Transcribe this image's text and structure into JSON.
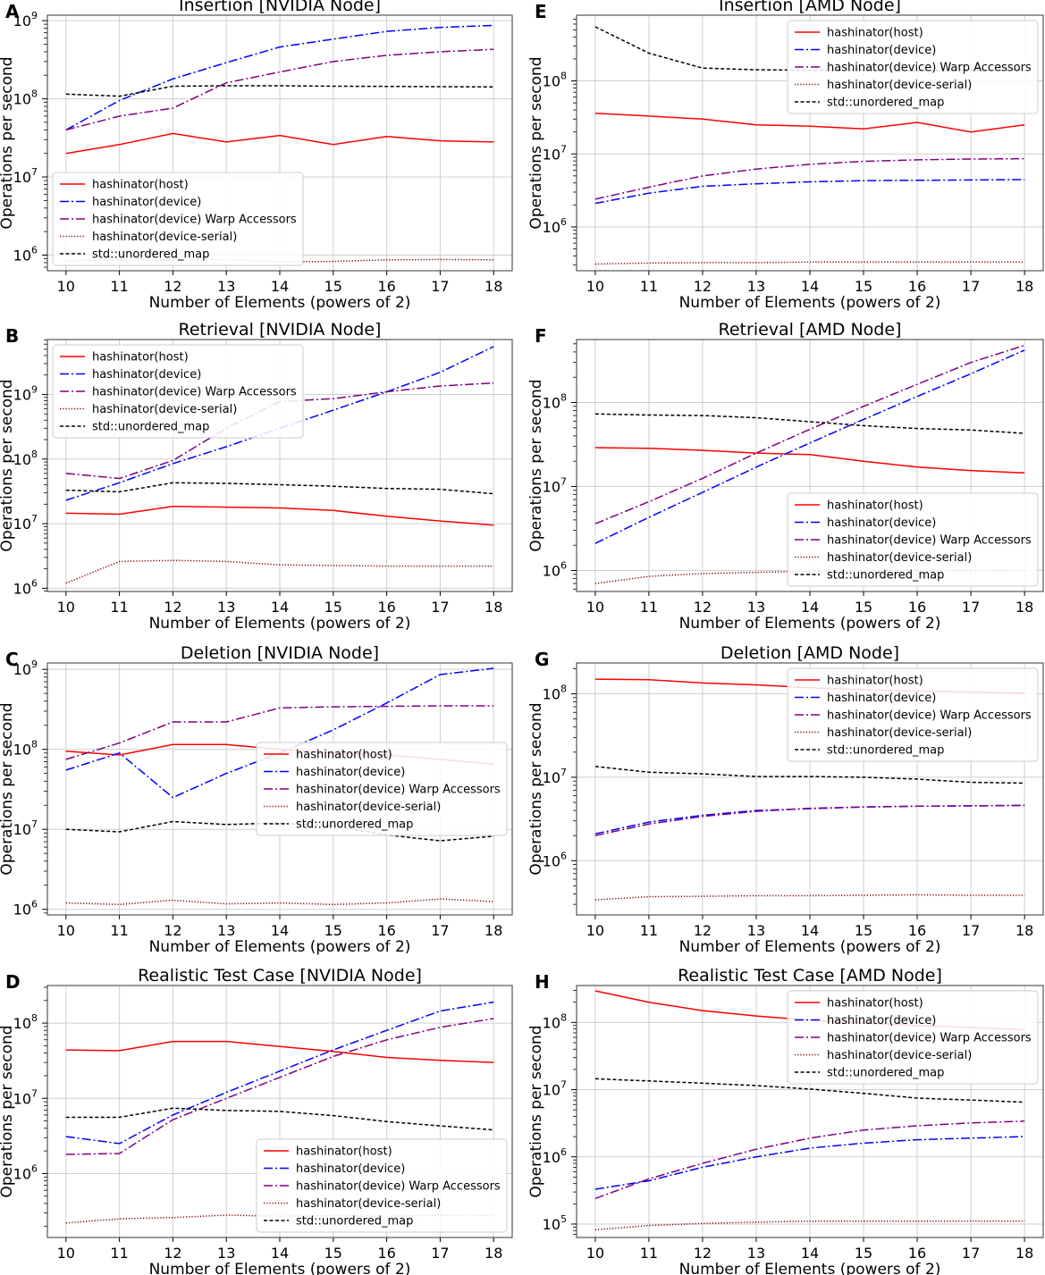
{
  "legend_labels": [
    "hashinator(host)",
    "hashinator(device)",
    "hashinator(device) Warp Accessors",
    "hashinator(device-serial)",
    "std::unordered_map"
  ],
  "series_styles": [
    {
      "color": "#ff0000",
      "dash": ""
    },
    {
      "color": "#0000ff",
      "dash": "10 3 2 3"
    },
    {
      "color": "#800080",
      "dash": "10 3 2 3"
    },
    {
      "color": "#800000",
      "dash": "1.2 2"
    },
    {
      "color": "#000000",
      "dash": "4 2.5"
    }
  ],
  "chart_data": [
    {
      "id": "insertion-nvidia",
      "panel_label": "A",
      "title": "Insertion [NVIDIA Node]",
      "type": "line",
      "xlabel": "Number of Elements (powers of 2)",
      "ylabel": "Operations per second",
      "x": [
        10,
        11,
        12,
        13,
        14,
        15,
        16,
        17,
        18
      ],
      "yscale": "log",
      "ylim_exp": [
        5.8,
        9.07
      ],
      "yticks_exp": [
        6,
        7,
        8,
        9
      ],
      "legend_pos": "lower-left",
      "series": [
        {
          "name": "hashinator(host)",
          "values": [
            20000000.0,
            26000000.0,
            36000000.0,
            28000000.0,
            34000000.0,
            26000000.0,
            33000000.0,
            29000000.0,
            28000000.0
          ]
        },
        {
          "name": "hashinator(device)",
          "values": [
            40000000.0,
            95000000.0,
            180000000.0,
            290000000.0,
            460000000.0,
            580000000.0,
            730000000.0,
            820000000.0,
            870000000.0
          ]
        },
        {
          "name": "hashinator(device) Warp Accessors",
          "values": [
            40000000.0,
            60000000.0,
            76000000.0,
            160000000.0,
            220000000.0,
            300000000.0,
            360000000.0,
            400000000.0,
            430000000.0
          ]
        },
        {
          "name": "hashinator(device-serial)",
          "values": [
            850000.0,
            870000.0,
            860000.0,
            880000.0,
            820000.0,
            830000.0,
            870000.0,
            880000.0,
            870000.0
          ]
        },
        {
          "name": "std::unordered_map",
          "values": [
            115000000.0,
            108000000.0,
            145000000.0,
            147000000.0,
            147000000.0,
            145000000.0,
            144000000.0,
            143000000.0,
            142000000.0
          ]
        }
      ]
    },
    {
      "id": "retrieval-nvidia",
      "panel_label": "B",
      "title": "Retrieval [NVIDIA Node]",
      "type": "line",
      "xlabel": "Number of Elements (powers of 2)",
      "ylabel": "Operations per second",
      "x": [
        10,
        11,
        12,
        13,
        14,
        15,
        16,
        17,
        18
      ],
      "yscale": "log",
      "ylim_exp": [
        5.95,
        9.85
      ],
      "yticks_exp": [
        6,
        7,
        8,
        9
      ],
      "legend_pos": "upper-left",
      "series": [
        {
          "name": "hashinator(host)",
          "values": [
            14500000.0,
            14000000.0,
            18500000.0,
            18000000.0,
            17500000.0,
            16000000.0,
            13000000.0,
            11000000.0,
            9500000.0
          ]
        },
        {
          "name": "hashinator(device)",
          "values": [
            23000000.0,
            43000000.0,
            85000000.0,
            155000000.0,
            300000000.0,
            570000000.0,
            1100000000.0,
            2200000000.0,
            5500000000.0
          ]
        },
        {
          "name": "hashinator(device) Warp Accessors",
          "values": [
            60000000.0,
            50000000.0,
            95000000.0,
            300000000.0,
            780000000.0,
            860000000.0,
            1100000000.0,
            1350000000.0,
            1500000000.0
          ]
        },
        {
          "name": "hashinator(device-serial)",
          "values": [
            1200000.0,
            2600000.0,
            2700000.0,
            2600000.0,
            2300000.0,
            2250000.0,
            2200000.0,
            2200000.0,
            2200000.0
          ]
        },
        {
          "name": "std::unordered_map",
          "values": [
            33000000.0,
            31000000.0,
            43000000.0,
            42000000.0,
            40000000.0,
            38000000.0,
            35000000.0,
            34000000.0,
            29000000.0
          ]
        }
      ]
    },
    {
      "id": "deletion-nvidia",
      "panel_label": "C",
      "title": "Deletion [NVIDIA Node]",
      "type": "line",
      "xlabel": "Number of Elements (powers of 2)",
      "ylabel": "Operations per second",
      "x": [
        10,
        11,
        12,
        13,
        14,
        15,
        16,
        17,
        18
      ],
      "yscale": "log",
      "ylim_exp": [
        5.93,
        9.08
      ],
      "yticks_exp": [
        6,
        7,
        8,
        9
      ],
      "legend_pos": "center-right",
      "series": [
        {
          "name": "hashinator(host)",
          "values": [
            95000000.0,
            85000000.0,
            115000000.0,
            115000000.0,
            100000000.0,
            90000000.0,
            85000000.0,
            75000000.0,
            65000000.0
          ]
        },
        {
          "name": "hashinator(device)",
          "values": [
            55000000.0,
            90000000.0,
            25000000.0,
            50000000.0,
            90000000.0,
            175000000.0,
            380000000.0,
            860000000.0,
            1030000000.0
          ]
        },
        {
          "name": "hashinator(device) Warp Accessors",
          "values": [
            75000000.0,
            120000000.0,
            220000000.0,
            220000000.0,
            330000000.0,
            340000000.0,
            345000000.0,
            350000000.0,
            350000000.0
          ]
        },
        {
          "name": "hashinator(device-serial)",
          "values": [
            1200000.0,
            1150000.0,
            1300000.0,
            1170000.0,
            1200000.0,
            1150000.0,
            1200000.0,
            1350000.0,
            1250000.0
          ]
        },
        {
          "name": "std::unordered_map",
          "values": [
            10000000.0,
            9300000.0,
            12500000.0,
            11500000.0,
            12000000.0,
            11000000.0,
            8500000.0,
            7200000.0,
            8200000.0
          ]
        }
      ]
    },
    {
      "id": "realistic-nvidia",
      "panel_label": "D",
      "title": "Realistic Test Case [NVIDIA Node]",
      "type": "line",
      "xlabel": "Number of Elements (powers of 2)",
      "ylabel": "Operations per second",
      "x": [
        10,
        11,
        12,
        13,
        14,
        15,
        16,
        17,
        18
      ],
      "yscale": "log",
      "ylim_exp": [
        5.15,
        8.5
      ],
      "yticks_exp": [
        6,
        7,
        8
      ],
      "legend_pos": "lower-right",
      "series": [
        {
          "name": "hashinator(host)",
          "values": [
            44000000.0,
            43000000.0,
            57000000.0,
            57000000.0,
            49000000.0,
            42000000.0,
            35000000.0,
            32000000.0,
            30000000.0
          ]
        },
        {
          "name": "hashinator(device)",
          "values": [
            3100000.0,
            2500000.0,
            6000000.0,
            12000000.0,
            23000000.0,
            44000000.0,
            80000000.0,
            145000000.0,
            190000000.0
          ]
        },
        {
          "name": "hashinator(device) Warp Accessors",
          "values": [
            1800000.0,
            1850000.0,
            5200000.0,
            10000000.0,
            19000000.0,
            36000000.0,
            60000000.0,
            88000000.0,
            115000000.0
          ]
        },
        {
          "name": "hashinator(device-serial)",
          "values": [
            220000.0,
            250000.0,
            260000.0,
            280000.0,
            270000.0,
            275000.0,
            270000.0,
            280000.0,
            280000.0
          ]
        },
        {
          "name": "std::unordered_map",
          "values": [
            5600000.0,
            5600000.0,
            7400000.0,
            6900000.0,
            6700000.0,
            5900000.0,
            4900000.0,
            4300000.0,
            3800000.0
          ]
        }
      ]
    },
    {
      "id": "insertion-amd",
      "panel_label": "E",
      "title": "Insertion [AMD Node]",
      "type": "line",
      "xlabel": "Number of Elements (powers of 2)",
      "ylabel": "Operations per second",
      "x": [
        10,
        11,
        12,
        13,
        14,
        15,
        16,
        17,
        18
      ],
      "yscale": "log",
      "ylim_exp": [
        5.4,
        8.9
      ],
      "yticks_exp": [
        6,
        7,
        8
      ],
      "legend_pos": "upper-right",
      "series": [
        {
          "name": "hashinator(host)",
          "values": [
            36000000.0,
            33000000.0,
            30000000.0,
            25000000.0,
            24000000.0,
            22000000.0,
            27000000.0,
            20000000.0,
            25000000.0
          ]
        },
        {
          "name": "hashinator(device)",
          "values": [
            2100000.0,
            2900000.0,
            3600000.0,
            3900000.0,
            4150000.0,
            4300000.0,
            4350000.0,
            4400000.0,
            4450000.0
          ]
        },
        {
          "name": "hashinator(device) Warp Accessors",
          "values": [
            2400000.0,
            3500000.0,
            5000000.0,
            6200000.0,
            7200000.0,
            7900000.0,
            8300000.0,
            8500000.0,
            8600000.0
          ]
        },
        {
          "name": "hashinator(device-serial)",
          "values": [
            310000.0,
            320000.0,
            325000.0,
            325000.0,
            330000.0,
            330000.0,
            330000.0,
            330000.0,
            330000.0
          ]
        },
        {
          "name": "std::unordered_map",
          "values": [
            550000000.0,
            240000000.0,
            150000000.0,
            142000000.0,
            140000000.0,
            140000000.0,
            138000000.0,
            140000000.0,
            140000000.0
          ]
        }
      ]
    },
    {
      "id": "retrieval-amd",
      "panel_label": "F",
      "title": "Retrieval [AMD Node]",
      "type": "line",
      "xlabel": "Number of Elements (powers of 2)",
      "ylabel": "Operations per second",
      "x": [
        10,
        11,
        12,
        13,
        14,
        15,
        16,
        17,
        18
      ],
      "yscale": "log",
      "ylim_exp": [
        5.75,
        8.75
      ],
      "yticks_exp": [
        6,
        7,
        8
      ],
      "legend_pos": "lower-right",
      "series": [
        {
          "name": "hashinator(host)",
          "values": [
            29000000.0,
            28500000.0,
            27000000.0,
            25000000.0,
            24000000.0,
            20000000.0,
            17000000.0,
            15500000.0,
            14500000.0
          ]
        },
        {
          "name": "hashinator(device)",
          "values": [
            2100000.0,
            4300000.0,
            8500000.0,
            17000000.0,
            33000000.0,
            63000000.0,
            118000000.0,
            220000000.0,
            420000000.0
          ]
        },
        {
          "name": "hashinator(device) Warp Accessors",
          "values": [
            3600000.0,
            6600000.0,
            12500000.0,
            25000000.0,
            48000000.0,
            90000000.0,
            165000000.0,
            300000000.0,
            480000000.0
          ]
        },
        {
          "name": "hashinator(device-serial)",
          "values": [
            700000.0,
            850000.0,
            920000.0,
            950000.0,
            980000.0,
            1000000.0,
            1000000.0,
            1000000.0,
            1000000.0
          ]
        },
        {
          "name": "std::unordered_map",
          "values": [
            73000000.0,
            71000000.0,
            70000000.0,
            66000000.0,
            59000000.0,
            53000000.0,
            49000000.0,
            47000000.0,
            43000000.0
          ]
        }
      ]
    },
    {
      "id": "deletion-amd",
      "panel_label": "G",
      "title": "Deletion [AMD Node]",
      "type": "line",
      "xlabel": "Number of Elements (powers of 2)",
      "ylabel": "Operations per second",
      "x": [
        10,
        11,
        12,
        13,
        14,
        15,
        16,
        17,
        18
      ],
      "yscale": "log",
      "ylim_exp": [
        5.35,
        8.37
      ],
      "yticks_exp": [
        6,
        7,
        8
      ],
      "legend_pos": "upper-right",
      "series": [
        {
          "name": "hashinator(host)",
          "values": [
            150000000.0,
            148000000.0,
            135000000.0,
            128000000.0,
            118000000.0,
            112000000.0,
            108000000.0,
            105000000.0,
            101000000.0
          ]
        },
        {
          "name": "hashinator(device)",
          "values": [
            2100000.0,
            2900000.0,
            3500000.0,
            4000000.0,
            4200000.0,
            4400000.0,
            4500000.0,
            4550000.0,
            4600000.0
          ]
        },
        {
          "name": "hashinator(device) Warp Accessors",
          "values": [
            2000000.0,
            2750000.0,
            3400000.0,
            3900000.0,
            4250000.0,
            4400000.0,
            4500000.0,
            4550000.0,
            4600000.0
          ]
        },
        {
          "name": "hashinator(device-serial)",
          "values": [
            340000.0,
            370000.0,
            375000.0,
            380000.0,
            380000.0,
            385000.0,
            390000.0,
            385000.0,
            385000.0
          ]
        },
        {
          "name": "std::unordered_map",
          "values": [
            13500000.0,
            11500000.0,
            11000000.0,
            10200000.0,
            10200000.0,
            10000000.0,
            9500000.0,
            8700000.0,
            8500000.0
          ]
        }
      ]
    },
    {
      "id": "realistic-amd",
      "panel_label": "H",
      "title": "Realistic Test Case [AMD Node]",
      "type": "line",
      "xlabel": "Number of Elements (powers of 2)",
      "ylabel": "Operations per second",
      "x": [
        10,
        11,
        12,
        13,
        14,
        15,
        16,
        17,
        18
      ],
      "yscale": "log",
      "ylim_exp": [
        4.8,
        8.55
      ],
      "yticks_exp": [
        5,
        6,
        7,
        8
      ],
      "legend_pos": "upper-right",
      "series": [
        {
          "name": "hashinator(host)",
          "values": [
            295000000.0,
            200000000.0,
            150000000.0,
            125000000.0,
            108000000.0,
            98000000.0,
            90000000.0,
            84000000.0,
            78000000.0
          ]
        },
        {
          "name": "hashinator(device)",
          "values": [
            330000.0,
            440000.0,
            700000.0,
            1000000.0,
            1350000.0,
            1600000.0,
            1800000.0,
            1900000.0,
            2000000.0
          ]
        },
        {
          "name": "hashinator(device) Warp Accessors",
          "values": [
            240000.0,
            470000.0,
            800000.0,
            1300000.0,
            1900000.0,
            2500000.0,
            2900000.0,
            3200000.0,
            3400000.0
          ]
        },
        {
          "name": "hashinator(device-serial)",
          "values": [
            82000.0,
            95000.0,
            102000.0,
            107000.0,
            110000.0,
            110000.0,
            110000.0,
            111000.0,
            111000.0
          ]
        },
        {
          "name": "std::unordered_map",
          "values": [
            14500000.0,
            13500000.0,
            12500000.0,
            11500000.0,
            10200000.0,
            8800000.0,
            7500000.0,
            7000000.0,
            6500000.0
          ]
        }
      ]
    }
  ]
}
